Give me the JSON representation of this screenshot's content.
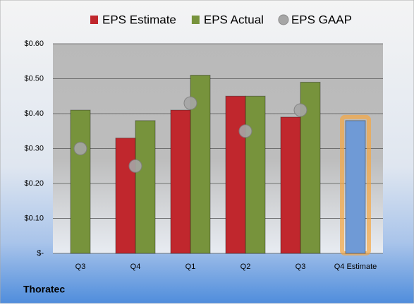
{
  "chart_data": {
    "type": "bar",
    "categories": [
      "Q3",
      "Q4",
      "Q1",
      "Q2",
      "Q3",
      "Q4 Estimate"
    ],
    "series": [
      {
        "name": "EPS Estimate",
        "color": "#c0272d",
        "point_colors": [
          null,
          null,
          null,
          null,
          null,
          "#6f9ad6"
        ],
        "values": [
          null,
          0.33,
          0.41,
          0.45,
          0.39,
          0.38
        ]
      },
      {
        "name": "EPS Actual",
        "color": "#77933c",
        "values": [
          0.41,
          0.38,
          0.51,
          0.45,
          0.49,
          null
        ]
      },
      {
        "name": "EPS GAAP",
        "color": "#a6a6a6",
        "marker": "circle",
        "values": [
          0.3,
          0.25,
          0.43,
          0.35,
          0.41,
          null
        ]
      }
    ],
    "ylim": [
      0,
      0.6
    ],
    "yticks": [
      {
        "value": 0,
        "label": "$-"
      },
      {
        "value": 0.1,
        "label": "$0.10"
      },
      {
        "value": 0.2,
        "label": "$0.20"
      },
      {
        "value": 0.3,
        "label": "$0.30"
      },
      {
        "value": 0.4,
        "label": "$0.40"
      },
      {
        "value": 0.5,
        "label": "$0.50"
      },
      {
        "value": 0.6,
        "label": "$0.60"
      }
    ],
    "grid": true,
    "legend": "top",
    "footer": "Thoratec"
  }
}
